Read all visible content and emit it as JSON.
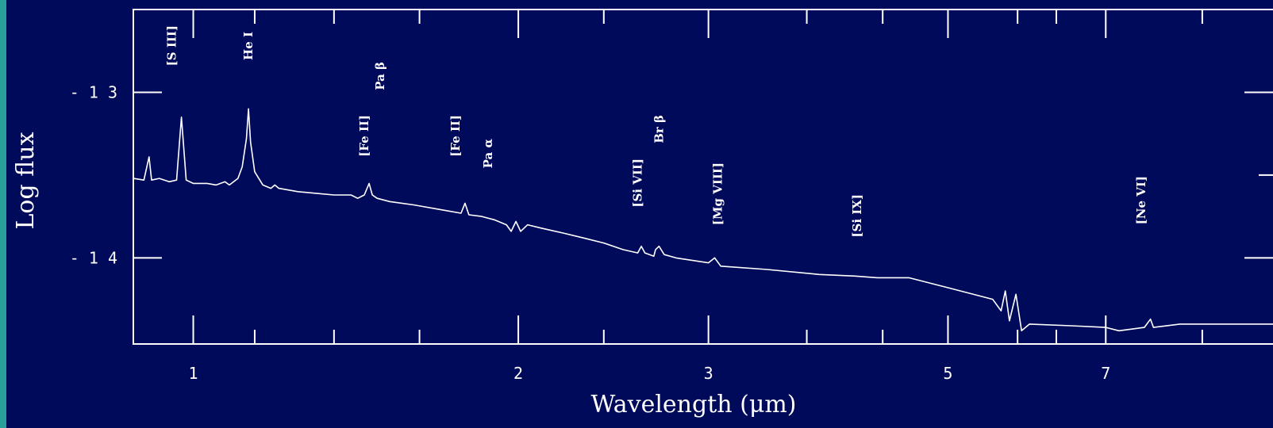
{
  "colors": {
    "background": "#000a5a",
    "stripe": "#2aa198",
    "foreground": "#ffffff"
  },
  "chart_data": {
    "type": "line",
    "xlabel": "Wavelength (μm)",
    "ylabel": "Log flux",
    "x_scale": "log",
    "xlim": [
      0.88,
      10.0
    ],
    "ylim": [
      -14.52,
      -12.5
    ],
    "x_ticks": [
      {
        "value": 1,
        "label": "1"
      },
      {
        "value": 2,
        "label": "2"
      },
      {
        "value": 3,
        "label": "3"
      },
      {
        "value": 5,
        "label": "5"
      },
      {
        "value": 7,
        "label": "7"
      }
    ],
    "x_minor_ticks": [
      1.14,
      1.35,
      1.62,
      2.4,
      3.7,
      4.35,
      5.8,
      6.3,
      8.6
    ],
    "y_ticks": [
      {
        "value": -13,
        "label": "- 1 3"
      },
      {
        "value": -14,
        "label": "- 1 4"
      }
    ],
    "series": [
      {
        "points": [
          [
            0.88,
            -13.52
          ],
          [
            0.9,
            -13.53
          ],
          [
            0.91,
            -13.39
          ],
          [
            0.915,
            -13.53
          ],
          [
            0.93,
            -13.52
          ],
          [
            0.95,
            -13.54
          ],
          [
            0.965,
            -13.53
          ],
          [
            0.975,
            -13.15
          ],
          [
            0.985,
            -13.53
          ],
          [
            1.0,
            -13.55
          ],
          [
            1.03,
            -13.55
          ],
          [
            1.05,
            -13.56
          ],
          [
            1.07,
            -13.54
          ],
          [
            1.08,
            -13.56
          ],
          [
            1.1,
            -13.52
          ],
          [
            1.11,
            -13.45
          ],
          [
            1.12,
            -13.28
          ],
          [
            1.125,
            -13.1
          ],
          [
            1.13,
            -13.3
          ],
          [
            1.14,
            -13.48
          ],
          [
            1.16,
            -13.56
          ],
          [
            1.18,
            -13.58
          ],
          [
            1.19,
            -13.56
          ],
          [
            1.2,
            -13.58
          ],
          [
            1.25,
            -13.6
          ],
          [
            1.3,
            -13.61
          ],
          [
            1.35,
            -13.62
          ],
          [
            1.4,
            -13.62
          ],
          [
            1.42,
            -13.64
          ],
          [
            1.44,
            -13.62
          ],
          [
            1.455,
            -13.55
          ],
          [
            1.465,
            -13.62
          ],
          [
            1.48,
            -13.64
          ],
          [
            1.52,
            -13.66
          ],
          [
            1.6,
            -13.68
          ],
          [
            1.7,
            -13.71
          ],
          [
            1.77,
            -13.73
          ],
          [
            1.785,
            -13.67
          ],
          [
            1.8,
            -13.74
          ],
          [
            1.85,
            -13.75
          ],
          [
            1.9,
            -13.77
          ],
          [
            1.95,
            -13.8
          ],
          [
            1.97,
            -13.84
          ],
          [
            1.99,
            -13.78
          ],
          [
            2.01,
            -13.84
          ],
          [
            2.04,
            -13.8
          ],
          [
            2.1,
            -13.82
          ],
          [
            2.2,
            -13.85
          ],
          [
            2.3,
            -13.88
          ],
          [
            2.4,
            -13.91
          ],
          [
            2.5,
            -13.95
          ],
          [
            2.58,
            -13.97
          ],
          [
            2.6,
            -13.93
          ],
          [
            2.62,
            -13.97
          ],
          [
            2.67,
            -13.99
          ],
          [
            2.68,
            -13.95
          ],
          [
            2.7,
            -13.93
          ],
          [
            2.73,
            -13.98
          ],
          [
            2.8,
            -14.0
          ],
          [
            3.0,
            -14.03
          ],
          [
            3.04,
            -14.0
          ],
          [
            3.08,
            -14.05
          ],
          [
            3.4,
            -14.07
          ],
          [
            3.8,
            -14.1
          ],
          [
            4.1,
            -14.11
          ],
          [
            4.3,
            -14.12
          ],
          [
            4.6,
            -14.12
          ],
          [
            5.0,
            -14.18
          ],
          [
            5.5,
            -14.25
          ],
          [
            5.6,
            -14.32
          ],
          [
            5.65,
            -14.2
          ],
          [
            5.7,
            -14.38
          ],
          [
            5.78,
            -14.22
          ],
          [
            5.85,
            -14.44
          ],
          [
            5.95,
            -14.4
          ],
          [
            6.5,
            -14.41
          ],
          [
            7.0,
            -14.42
          ],
          [
            7.2,
            -14.44
          ],
          [
            7.4,
            -14.43
          ],
          [
            7.6,
            -14.42
          ],
          [
            7.7,
            -14.37
          ],
          [
            7.75,
            -14.42
          ],
          [
            8.2,
            -14.4
          ],
          [
            10.0,
            -14.4
          ]
        ]
      }
    ],
    "annotations": [
      {
        "text": "[S III]",
        "x": 0.955
      },
      {
        "text": "He I",
        "x": 1.125
      },
      {
        "text": "[Fe II]",
        "x": 1.44
      },
      {
        "text": "Pa β",
        "x": 1.49
      },
      {
        "text": "[Fe II]",
        "x": 1.75
      },
      {
        "text": "Pa α",
        "x": 1.875
      },
      {
        "text": "[Si VII]",
        "x": 2.58
      },
      {
        "text": "Br β",
        "x": 2.7
      },
      {
        "text": "[Mg VIII]",
        "x": 3.06
      },
      {
        "text": "[Si IX]",
        "x": 4.12
      },
      {
        "text": "[Ne VI]",
        "x": 7.55
      }
    ]
  }
}
